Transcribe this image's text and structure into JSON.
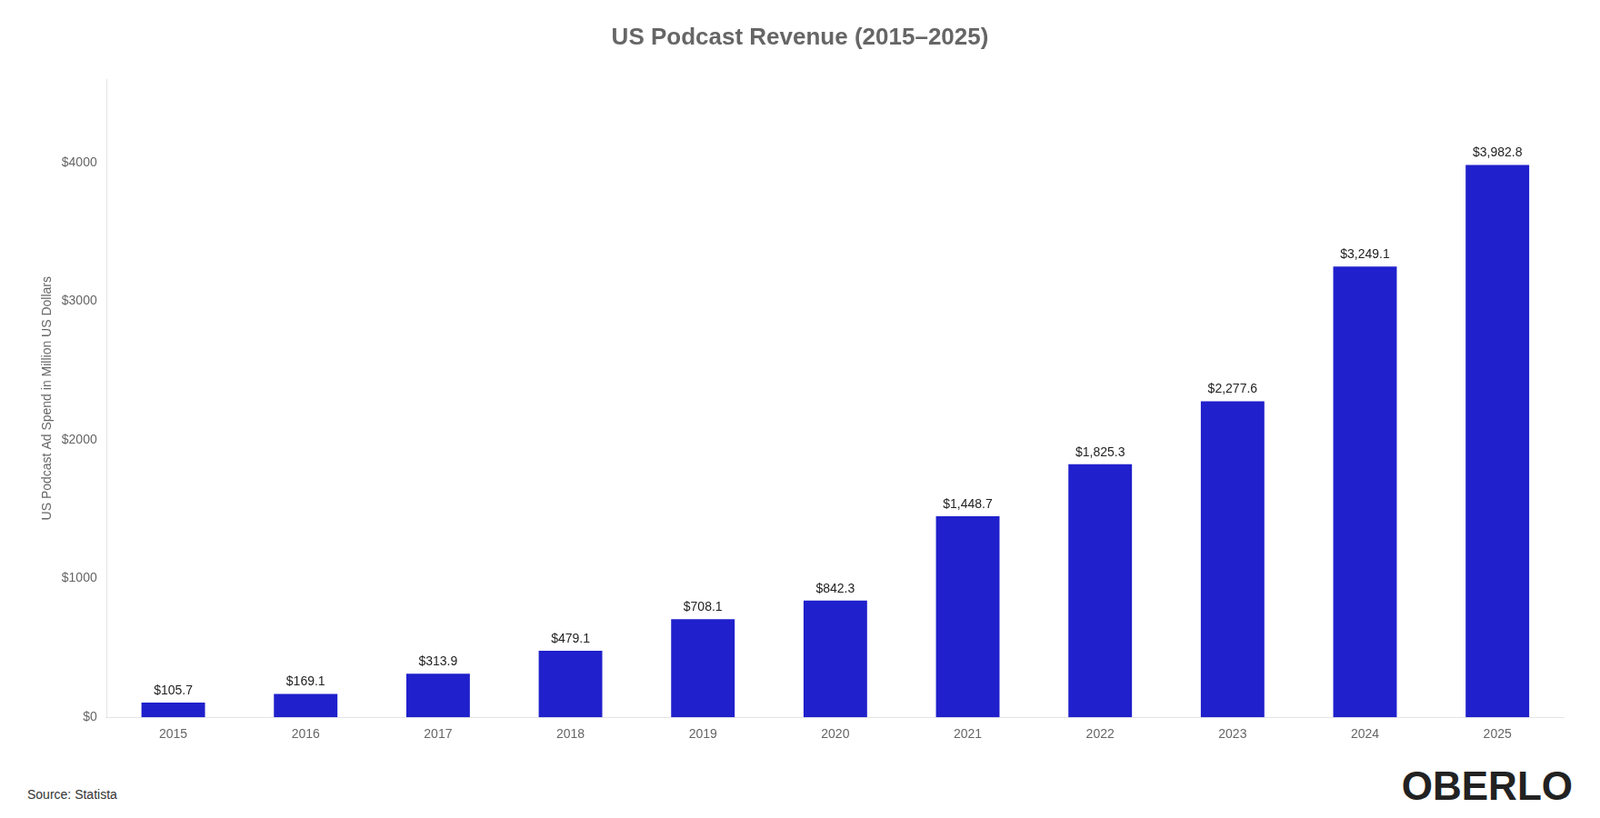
{
  "chart_data": {
    "type": "bar",
    "title": "US Podcast Revenue (2015–2025)",
    "ylabel": "US Podcast Ad Spend in Million US Dollars",
    "source": "Source: Statista",
    "watermark": "OBERLO",
    "categories": [
      "2015",
      "2016",
      "2017",
      "2018",
      "2019",
      "2020",
      "2021",
      "2022",
      "2023",
      "2024",
      "2025"
    ],
    "values": [
      105.7,
      169.1,
      313.9,
      479.1,
      708.1,
      842.3,
      1448.7,
      1825.3,
      2277.6,
      3249.1,
      3982.8
    ],
    "value_labels": [
      "$105.7",
      "$169.1",
      "$313.9",
      "$479.1",
      "$708.1",
      "$842.3",
      "$1,448.7",
      "$1,825.3",
      "$2,277.6",
      "$3,249.1",
      "$3,982.8"
    ],
    "data_labels": true,
    "color": "#2020CC",
    "ylim": [
      0,
      4600
    ],
    "yticks": [
      {
        "value": 0,
        "label": "$0"
      },
      {
        "value": 1000,
        "label": "$1000"
      },
      {
        "value": 2000,
        "label": "$2000"
      },
      {
        "value": 3000,
        "label": "$3000"
      },
      {
        "value": 4000,
        "label": "$4000"
      }
    ],
    "grid": false
  }
}
